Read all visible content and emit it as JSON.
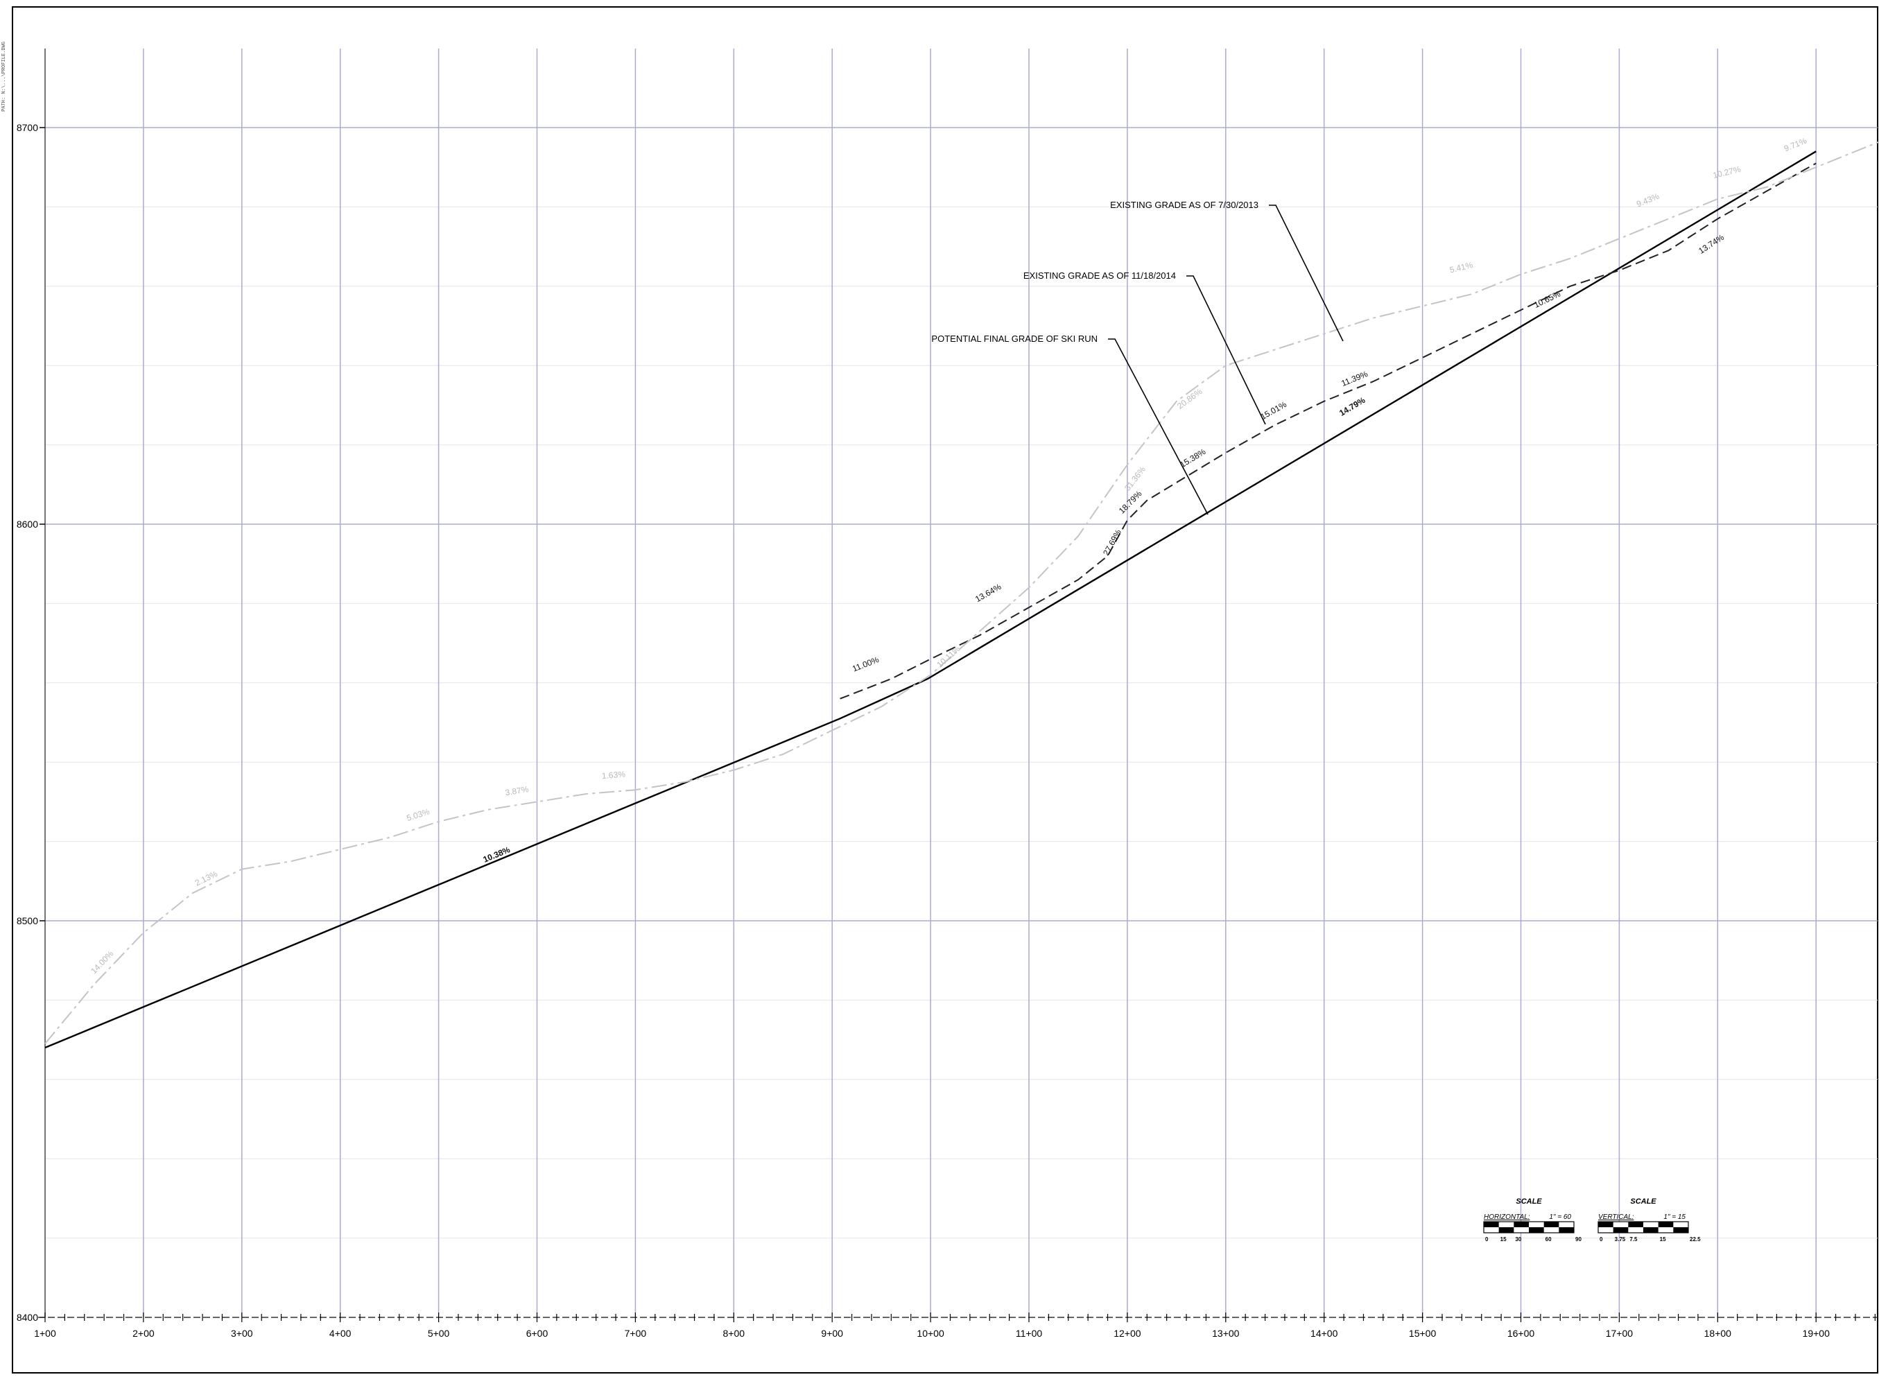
{
  "sheet": {
    "margin_note": "PATH: N:\\...\\PROFILE.DWG"
  },
  "chart_data": {
    "type": "line",
    "title": "",
    "xlabel": "",
    "ylabel": "",
    "x_unit": "station (ft)",
    "xlim": [
      100,
      2000
    ],
    "ylim": [
      8400,
      8720
    ],
    "y_ticks": [
      8400,
      8500,
      8600,
      8700
    ],
    "y_tick_labels": [
      "8400",
      "8500",
      "8600",
      "8700"
    ],
    "x_ticks": [
      100,
      200,
      300,
      400,
      500,
      600,
      700,
      800,
      900,
      1000,
      1100,
      1200,
      1300,
      1400,
      1500,
      1600,
      1700,
      1800,
      1900
    ],
    "x_tick_labels": [
      "1+00",
      "2+00",
      "3+00",
      "4+00",
      "5+00",
      "6+00",
      "7+00",
      "8+00",
      "9+00",
      "10+00",
      "11+00",
      "12+00",
      "13+00",
      "14+00",
      "15+00",
      "16+00",
      "17+00",
      "18+00",
      "19+00"
    ],
    "grid": true,
    "series": [
      {
        "name": "POTENTIAL FINAL GRADE OF SKI RUN",
        "style": "solid",
        "color": "#000000",
        "x": [
          100,
          908,
          997,
          1900
        ],
        "y": [
          8468,
          8551,
          8561,
          8694
        ],
        "grade_labels": [
          {
            "text": "10.38%",
            "x": 560,
            "y": 8515
          },
          {
            "text": "14.79%",
            "x": 1430,
            "y": 8628
          }
        ]
      },
      {
        "name": "EXISTING GRADE AS OF 11/18/2014",
        "style": "dashed",
        "color": "#222222",
        "x": [
          908,
          960,
          1000,
          1050,
          1100,
          1150,
          1180,
          1200,
          1220,
          1260,
          1300,
          1350,
          1400,
          1450,
          1500,
          1550,
          1600,
          1650,
          1700,
          1750,
          1800,
          1850,
          1900
        ],
        "y": [
          8556,
          8561,
          8566,
          8572,
          8579,
          8586,
          8592,
          8601,
          8606,
          8612,
          8618,
          8625,
          8631,
          8636,
          8642,
          8648,
          8654,
          8660,
          8664,
          8669,
          8677,
          8684,
          8691
        ],
        "grade_labels": [
          {
            "text": "11.00%",
            "x": 935,
            "y": 8563
          },
          {
            "text": "13.64%",
            "x": 1060,
            "y": 8581
          },
          {
            "text": "27.69%",
            "x": 1187,
            "y": 8594
          },
          {
            "text": "18.79%",
            "x": 1205,
            "y": 8604
          },
          {
            "text": "15.38%",
            "x": 1268,
            "y": 8615
          },
          {
            "text": "15.01%",
            "x": 1350,
            "y": 8627
          },
          {
            "text": "11.39%",
            "x": 1432,
            "y": 8635
          },
          {
            "text": "10.65%",
            "x": 1628,
            "y": 8655
          },
          {
            "text": "13.74%",
            "x": 1795,
            "y": 8669
          }
        ]
      },
      {
        "name": "EXISTING GRADE AS OF 7/30/2013",
        "style": "dash-dot",
        "color": "#c4c4c4",
        "x": [
          100,
          150,
          200,
          250,
          300,
          350,
          400,
          450,
          500,
          550,
          600,
          650,
          700,
          750,
          800,
          850,
          900,
          950,
          1000,
          1050,
          1100,
          1150,
          1200,
          1250,
          1300,
          1350,
          1400,
          1450,
          1500,
          1550,
          1600,
          1650,
          1700,
          1750,
          1800,
          1850,
          1900,
          1950,
          2000
        ],
        "y": [
          8469,
          8484,
          8497,
          8507,
          8513,
          8515,
          8518,
          8521,
          8525,
          8528,
          8530,
          8532,
          8533,
          8535,
          8538,
          8542,
          8548,
          8554,
          8562,
          8573,
          8584,
          8597,
          8615,
          8631,
          8640,
          8644,
          8648,
          8652,
          8655,
          8658,
          8663,
          8667,
          8672,
          8677,
          8682,
          8685,
          8690,
          8695,
          8700
        ],
        "grade_labels": [
          {
            "text": "14.00%",
            "x": 160,
            "y": 8488
          },
          {
            "text": "2.13%",
            "x": 265,
            "y": 8509
          },
          {
            "text": "5.03%",
            "x": 480,
            "y": 8525
          },
          {
            "text": "3.87%",
            "x": 580,
            "y": 8531
          },
          {
            "text": "1.63%",
            "x": 678,
            "y": 8535
          },
          {
            "text": "10.11%",
            "x": 1020,
            "y": 8565
          },
          {
            "text": "31.36%",
            "x": 1210,
            "y": 8610
          },
          {
            "text": "20.86%",
            "x": 1265,
            "y": 8630
          },
          {
            "text": "5.41%",
            "x": 1540,
            "y": 8663
          },
          {
            "text": "9.43%",
            "x": 1730,
            "y": 8680
          },
          {
            "text": "10.27%",
            "x": 1810,
            "y": 8687
          },
          {
            "text": "9.71%",
            "x": 1880,
            "y": 8694
          }
        ]
      }
    ],
    "annotations": [
      {
        "text": "EXISTING GRADE AS OF 7/30/2013",
        "target_series": 2
      },
      {
        "text": "EXISTING GRADE AS OF 11/18/2014",
        "target_series": 1
      },
      {
        "text": "POTENTIAL FINAL GRADE OF SKI RUN",
        "target_series": 0
      }
    ],
    "scale_bars": {
      "horizontal": {
        "title": "SCALE",
        "label": "HORIZONTAL:",
        "ratio": "1\" = 60",
        "ticks": [
          "0",
          "15",
          "30",
          "60",
          "90"
        ]
      },
      "vertical": {
        "title": "SCALE",
        "label": "VERTICAL:",
        "ratio": "1\" = 15",
        "ticks": [
          "0",
          "3.75",
          "7.5",
          "15",
          "22.5"
        ]
      }
    }
  }
}
